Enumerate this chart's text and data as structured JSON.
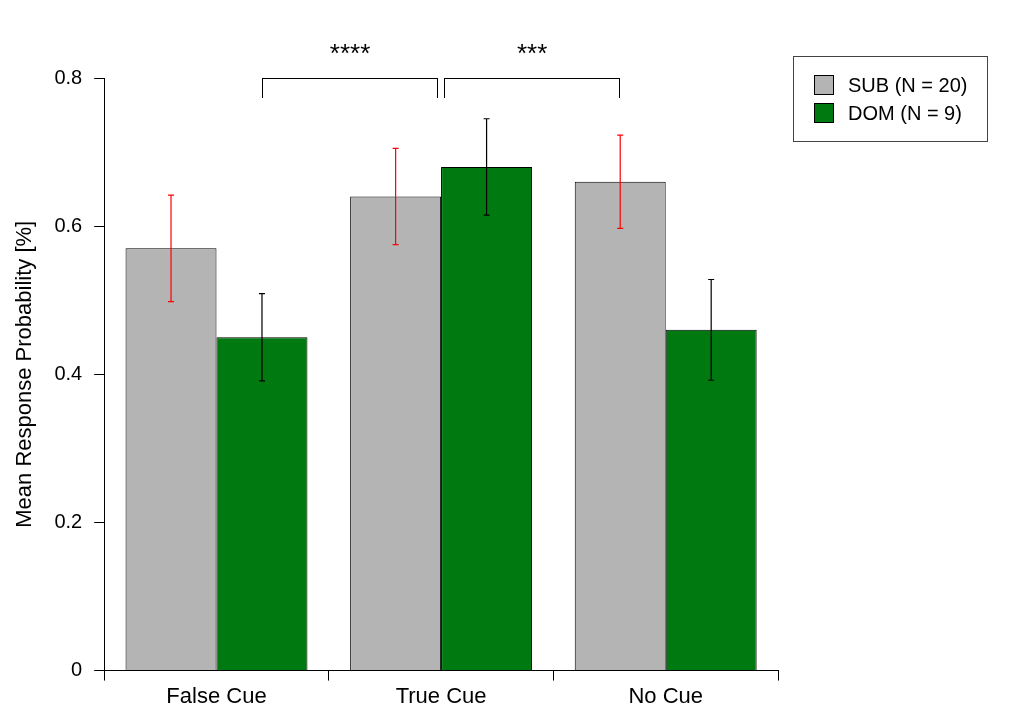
{
  "chart_data": {
    "type": "bar",
    "ylabel": "Mean Response Probability [%]",
    "categories": [
      "False Cue",
      "True Cue",
      "No Cue"
    ],
    "series": [
      {
        "name": "SUB (N = 20)",
        "color": "#b4b4b4",
        "values": [
          0.57,
          0.64,
          0.66
        ],
        "errors": [
          0.072,
          0.065,
          0.063
        ]
      },
      {
        "name": "DOM (N = 9)",
        "color": "#007a10",
        "values": [
          0.45,
          0.68,
          0.46
        ],
        "errors": [
          0.059,
          0.065,
          0.068
        ]
      }
    ],
    "ylim": [
      0,
      0.8
    ],
    "yticks": [
      0,
      0.2,
      0.4,
      0.6,
      0.8
    ],
    "grid": false,
    "legend": "top right",
    "annotations": [
      "****",
      "***"
    ]
  }
}
